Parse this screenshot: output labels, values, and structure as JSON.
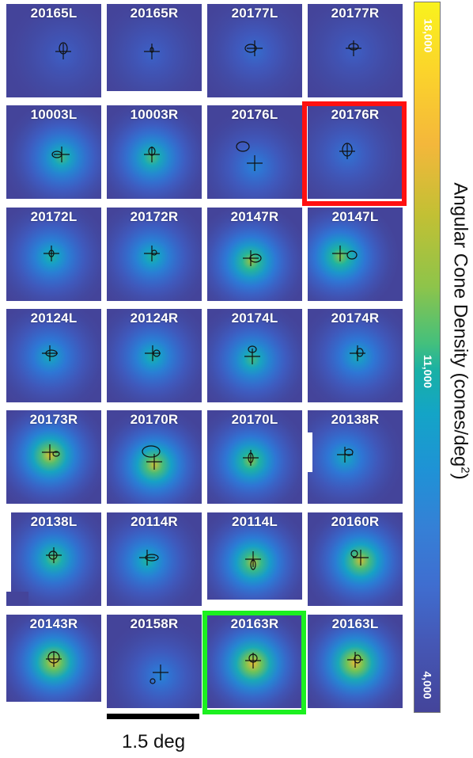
{
  "subjects": [
    {
      "label": "20165L",
      "row": 0,
      "col": 0,
      "peak": 0.18,
      "clip": "none"
    },
    {
      "label": "20165R",
      "row": 0,
      "col": 1,
      "peak": 0.2,
      "clip": "bottom"
    },
    {
      "label": "20177L",
      "row": 0,
      "col": 2,
      "peak": 0.25,
      "clip": "none"
    },
    {
      "label": "20177R",
      "row": 0,
      "col": 3,
      "peak": 0.18,
      "clip": "none"
    },
    {
      "label": "10003L",
      "row": 1,
      "col": 0,
      "peak": 0.6,
      "clip": "none"
    },
    {
      "label": "10003R",
      "row": 1,
      "col": 1,
      "peak": 0.62,
      "clip": "none"
    },
    {
      "label": "20176L",
      "row": 1,
      "col": 2,
      "peak": 0.35,
      "clip": "none"
    },
    {
      "label": "20176R",
      "row": 1,
      "col": 3,
      "peak": 0.28,
      "clip": "none"
    },
    {
      "label": "20172L",
      "row": 2,
      "col": 0,
      "peak": 0.55,
      "clip": "none"
    },
    {
      "label": "20172R",
      "row": 2,
      "col": 1,
      "peak": 0.55,
      "clip": "none"
    },
    {
      "label": "20147R",
      "row": 2,
      "col": 2,
      "peak": 0.72,
      "clip": "none"
    },
    {
      "label": "20147L",
      "row": 2,
      "col": 3,
      "peak": 0.7,
      "clip": "none"
    },
    {
      "label": "20124L",
      "row": 3,
      "col": 0,
      "peak": 0.5,
      "clip": "none"
    },
    {
      "label": "20124R",
      "row": 3,
      "col": 1,
      "peak": 0.55,
      "clip": "none"
    },
    {
      "label": "20174L",
      "row": 3,
      "col": 2,
      "peak": 0.6,
      "clip": "none"
    },
    {
      "label": "20174R",
      "row": 3,
      "col": 3,
      "peak": 0.5,
      "clip": "none"
    },
    {
      "label": "20173R",
      "row": 4,
      "col": 0,
      "peak": 0.8,
      "clip": "none"
    },
    {
      "label": "20170R",
      "row": 4,
      "col": 1,
      "peak": 0.78,
      "clip": "none"
    },
    {
      "label": "20170L",
      "row": 4,
      "col": 2,
      "peak": 0.7,
      "clip": "none"
    },
    {
      "label": "20138R",
      "row": 4,
      "col": 3,
      "peak": 0.5,
      "clip": "topleft"
    },
    {
      "label": "20138L",
      "row": 5,
      "col": 0,
      "peak": 0.65,
      "clip": "bottomleft"
    },
    {
      "label": "20114R",
      "row": 5,
      "col": 1,
      "peak": 0.55,
      "clip": "none"
    },
    {
      "label": "20114L",
      "row": 5,
      "col": 2,
      "peak": 0.75,
      "clip": "bottom"
    },
    {
      "label": "20160R",
      "row": 5,
      "col": 3,
      "peak": 0.78,
      "clip": "none"
    },
    {
      "label": "20143R",
      "row": 6,
      "col": 0,
      "peak": 0.82,
      "clip": "bottom"
    },
    {
      "label": "20158R",
      "row": 6,
      "col": 1,
      "peak": 0.35,
      "clip": "none"
    },
    {
      "label": "20163R",
      "row": 6,
      "col": 2,
      "peak": 0.85,
      "clip": "none"
    },
    {
      "label": "20163L",
      "row": 6,
      "col": 3,
      "peak": 0.85,
      "clip": "none"
    }
  ],
  "highlights": {
    "red": {
      "subject": "20176R",
      "color": "#ff1010"
    },
    "green": {
      "subject": "20163R",
      "color": "#1cf020"
    }
  },
  "colorbar": {
    "title": "Angular Cone Density (cones/deg",
    "title_sup": "2",
    "title_close": ")",
    "max_label": "18,000",
    "mid_label": "11,000",
    "min_label": "4,000",
    "colors": {
      "high": "#f9f21d",
      "mid": "#14a4c7",
      "low": "#44449a"
    }
  },
  "scale_bar": {
    "label": "1.5 deg"
  }
}
